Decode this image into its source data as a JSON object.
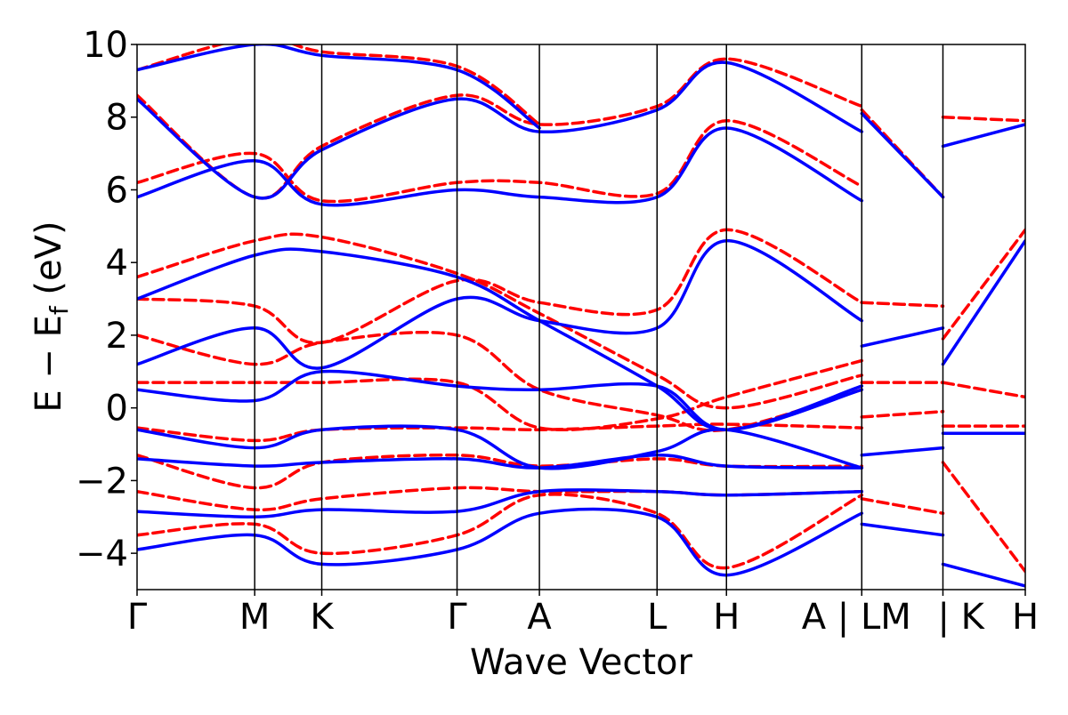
{
  "chart_data": {
    "type": "line",
    "xlabel": "Wave Vector",
    "ylabel": "E − E_f (eV)",
    "ylabel_parts": {
      "main": "E − E",
      "sub": "f",
      "unit": " (eV)"
    },
    "ylim": [
      -5,
      10
    ],
    "y_ticks": [
      -4,
      -2,
      0,
      2,
      4,
      6,
      8,
      10
    ],
    "y_tick_labels": [
      "−4",
      "−2",
      "0",
      "2",
      "4",
      "6",
      "8",
      "10"
    ],
    "xlim": [
      0,
      7.55
    ],
    "k_points": [
      {
        "label": "Γ",
        "x": 0.0
      },
      {
        "label": "M",
        "x": 1.0
      },
      {
        "label": "K",
        "x": 1.57
      },
      {
        "label": "Γ",
        "x": 2.72
      },
      {
        "label": "A",
        "x": 3.42
      },
      {
        "label": "L",
        "x": 4.42
      },
      {
        "label": "H",
        "x": 5.01
      },
      {
        "label": "A | LM",
        "x": 6.16
      },
      {
        "label": "| K",
        "x": 6.85
      },
      {
        "label": "H",
        "x": 7.55
      }
    ],
    "series_styles": [
      {
        "key": "dft",
        "color": "#ff0000",
        "dash": "12 6"
      },
      {
        "key": "model",
        "color": "#0000ff",
        "dash": ""
      }
    ],
    "series": [
      {
        "style": "dft",
        "x": [
          0,
          1.0,
          1.57,
          2.72,
          3.42,
          4.42,
          5.01,
          6.16
        ],
        "values": [
          -3.5,
          -3.2,
          -4.0,
          -3.5,
          -2.4,
          -2.9,
          -4.4,
          -2.4
        ]
      },
      {
        "style": "dft",
        "x": [
          0,
          1.0,
          1.57,
          2.72,
          3.42,
          4.42,
          5.01,
          6.16
        ],
        "values": [
          -2.3,
          -2.8,
          -2.5,
          -2.2,
          -2.3,
          -2.3,
          -2.4,
          -2.3
        ]
      },
      {
        "style": "dft",
        "x": [
          0,
          1.0,
          1.57,
          2.72,
          3.42,
          4.42,
          5.01,
          6.16
        ],
        "values": [
          -1.3,
          -2.2,
          -1.5,
          -1.3,
          -1.6,
          -1.4,
          -1.6,
          -1.6
        ]
      },
      {
        "style": "dft",
        "x": [
          0,
          1.0,
          1.57,
          2.72,
          3.42,
          4.42,
          5.01,
          6.16
        ],
        "values": [
          -0.55,
          -0.9,
          -0.6,
          -0.55,
          -0.6,
          -0.5,
          -0.45,
          -0.55
        ]
      },
      {
        "style": "dft",
        "x": [
          0,
          1.0,
          1.57,
          2.72,
          3.42,
          4.42,
          5.01,
          6.16
        ],
        "values": [
          0.7,
          0.7,
          0.7,
          0.7,
          -0.55,
          -0.3,
          0.3,
          1.3
        ]
      },
      {
        "style": "dft",
        "x": [
          0,
          1.0,
          1.57,
          2.72,
          3.42,
          4.42,
          5.01,
          6.16
        ],
        "values": [
          2.0,
          1.2,
          1.8,
          2.0,
          0.5,
          -0.2,
          -0.6,
          0.5
        ]
      },
      {
        "style": "dft",
        "x": [
          0,
          1.0,
          1.57,
          2.72,
          3.42,
          4.42,
          5.01,
          6.16
        ],
        "values": [
          3.0,
          2.8,
          1.8,
          3.5,
          2.9,
          2.7,
          4.9,
          2.9
        ]
      },
      {
        "style": "dft",
        "x": [
          0,
          1.0,
          1.57,
          2.72,
          3.42,
          4.42,
          5.01,
          6.16
        ],
        "values": [
          3.6,
          4.6,
          4.7,
          3.7,
          2.6,
          0.9,
          0.0,
          0.9
        ]
      },
      {
        "style": "dft",
        "x": [
          0,
          1.0,
          1.57,
          2.72,
          3.42,
          4.42,
          5.01,
          6.16
        ],
        "values": [
          6.2,
          7.0,
          5.7,
          6.2,
          6.2,
          5.9,
          7.9,
          6.1
        ]
      },
      {
        "style": "dft",
        "x": [
          0,
          1.0,
          1.57,
          2.72,
          3.42,
          4.42,
          5.01,
          6.16
        ],
        "values": [
          8.6,
          5.8,
          7.2,
          8.6,
          7.8,
          8.3,
          9.6,
          8.3
        ]
      },
      {
        "style": "dft",
        "x": [
          0,
          1.0,
          1.57,
          2.72,
          3.42
        ],
        "values": [
          9.3,
          10.2,
          9.8,
          9.4,
          7.8
        ]
      },
      {
        "style": "model",
        "x": [
          0,
          1.0,
          1.57,
          2.72,
          3.42,
          4.42,
          5.01,
          6.16
        ],
        "values": [
          -3.9,
          -3.5,
          -4.3,
          -3.9,
          -2.9,
          -3.0,
          -4.6,
          -2.9
        ]
      },
      {
        "style": "model",
        "x": [
          0,
          1.0,
          1.57,
          2.72,
          3.42,
          4.42,
          5.01,
          6.16
        ],
        "values": [
          -2.85,
          -3.0,
          -2.8,
          -2.85,
          -2.3,
          -2.3,
          -2.4,
          -2.3
        ]
      },
      {
        "style": "model",
        "x": [
          0,
          1.0,
          1.57,
          2.72,
          3.42,
          4.42,
          5.01,
          6.16
        ],
        "values": [
          -1.4,
          -1.6,
          -1.5,
          -1.4,
          -1.65,
          -1.3,
          -1.6,
          -1.65
        ]
      },
      {
        "style": "model",
        "x": [
          0,
          1.0,
          1.57,
          2.72,
          3.42,
          4.42,
          5.01,
          6.16
        ],
        "values": [
          -0.6,
          -1.1,
          -0.6,
          -0.6,
          -1.65,
          -1.2,
          -0.6,
          -1.65
        ]
      },
      {
        "style": "model",
        "x": [
          0,
          1.0,
          1.57,
          2.72,
          3.42,
          4.42,
          5.01,
          6.16
        ],
        "values": [
          0.5,
          0.2,
          1.0,
          0.6,
          0.5,
          0.6,
          -0.6,
          0.5
        ]
      },
      {
        "style": "model",
        "x": [
          0,
          1.0,
          1.57,
          2.72,
          3.42,
          4.42,
          5.01,
          6.16
        ],
        "values": [
          1.2,
          2.2,
          1.1,
          3.0,
          2.4,
          2.2,
          4.6,
          2.4
        ]
      },
      {
        "style": "model",
        "x": [
          0,
          1.0,
          1.57,
          2.72,
          3.42,
          4.42,
          5.01,
          6.16
        ],
        "values": [
          3.0,
          4.2,
          4.3,
          3.6,
          2.4,
          0.6,
          -0.6,
          0.6
        ]
      },
      {
        "style": "model",
        "x": [
          0,
          1.0,
          1.57,
          2.72,
          3.42,
          4.42,
          5.01,
          6.16
        ],
        "values": [
          5.8,
          6.8,
          5.6,
          6.0,
          5.8,
          5.8,
          7.7,
          5.7
        ]
      },
      {
        "style": "model",
        "x": [
          0,
          1.0,
          1.57,
          2.72,
          3.42,
          4.42,
          5.01,
          6.16
        ],
        "values": [
          8.5,
          5.8,
          7.1,
          8.5,
          7.6,
          8.2,
          9.5,
          7.6
        ]
      },
      {
        "style": "model",
        "x": [
          0,
          1.0,
          1.57,
          2.72,
          3.42
        ],
        "values": [
          9.3,
          10.0,
          9.7,
          9.3,
          7.7
        ]
      },
      {
        "style": "dft",
        "x": [
          6.16,
          6.85
        ],
        "values": [
          -2.5,
          -2.9
        ]
      },
      {
        "style": "dft",
        "x": [
          6.16,
          6.85
        ],
        "values": [
          -0.25,
          -0.1
        ]
      },
      {
        "style": "dft",
        "x": [
          6.16,
          6.85
        ],
        "values": [
          0.7,
          0.7
        ]
      },
      {
        "style": "dft",
        "x": [
          6.16,
          6.85
        ],
        "values": [
          2.9,
          2.8
        ]
      },
      {
        "style": "dft",
        "x": [
          6.16,
          6.85
        ],
        "values": [
          8.2,
          5.8
        ]
      },
      {
        "style": "model",
        "x": [
          6.16,
          6.85
        ],
        "values": [
          -3.2,
          -3.5
        ]
      },
      {
        "style": "model",
        "x": [
          6.16,
          6.85
        ],
        "values": [
          -1.3,
          -1.1
        ]
      },
      {
        "style": "model",
        "x": [
          6.16,
          6.85
        ],
        "values": [
          1.7,
          2.2
        ]
      },
      {
        "style": "model",
        "x": [
          6.16,
          6.85
        ],
        "values": [
          8.1,
          5.8
        ]
      },
      {
        "style": "dft",
        "x": [
          6.85,
          7.55
        ],
        "values": [
          -1.5,
          -4.5
        ]
      },
      {
        "style": "dft",
        "x": [
          6.85,
          7.55
        ],
        "values": [
          -0.5,
          -0.5
        ]
      },
      {
        "style": "dft",
        "x": [
          6.85,
          7.55
        ],
        "values": [
          0.7,
          0.3
        ]
      },
      {
        "style": "dft",
        "x": [
          6.85,
          7.55
        ],
        "values": [
          1.9,
          4.9
        ]
      },
      {
        "style": "dft",
        "x": [
          6.85,
          7.55
        ],
        "values": [
          8.0,
          7.9
        ]
      },
      {
        "style": "model",
        "x": [
          6.85,
          7.55
        ],
        "values": [
          -4.3,
          -4.9
        ]
      },
      {
        "style": "model",
        "x": [
          6.85,
          7.55
        ],
        "values": [
          -0.7,
          -0.7
        ]
      },
      {
        "style": "model",
        "x": [
          6.85,
          7.55
        ],
        "values": [
          1.2,
          4.6
        ]
      },
      {
        "style": "model",
        "x": [
          6.85,
          7.55
        ],
        "values": [
          7.2,
          7.8
        ]
      }
    ]
  }
}
